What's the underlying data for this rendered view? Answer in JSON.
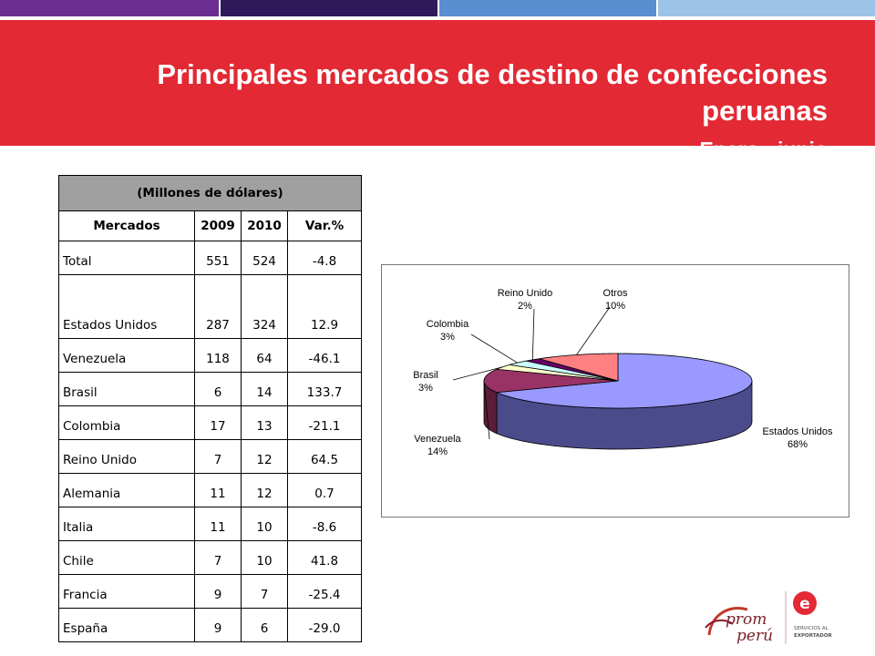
{
  "slide": {
    "title": "Principales mercados de destino de confecciones peruanas",
    "subtitle": "Enero -  junio"
  },
  "colors": {
    "banner": "#e32934",
    "topbar": [
      "#6b2d8f",
      "#2e1a5b",
      "#5a8ed0",
      "#9cc3e8"
    ],
    "table_caption_bg": "#a0a0a0"
  },
  "table": {
    "caption": "(Millones de dólares)",
    "headers": [
      "Mercados",
      "2009",
      "2010",
      "Var.%"
    ],
    "rows": [
      [
        "Total",
        "551",
        "524",
        "-4.8"
      ],
      [
        "Estados Unidos",
        "287",
        "324",
        "12.9"
      ],
      [
        "Venezuela",
        "118",
        "64",
        "-46.1"
      ],
      [
        "Brasil",
        "6",
        "14",
        "133.7"
      ],
      [
        "Colombia",
        "17",
        "13",
        "-21.1"
      ],
      [
        "Reino Unido",
        "7",
        "12",
        "64.5"
      ],
      [
        "Alemania",
        "11",
        "12",
        "0.7"
      ],
      [
        "Italia",
        "11",
        "10",
        "-8.6"
      ],
      [
        "Chile",
        "7",
        "10",
        "41.8"
      ],
      [
        "Francia",
        "9",
        "7",
        "-25.4"
      ],
      [
        "España",
        "9",
        "6",
        "-29.0"
      ]
    ]
  },
  "chart_data": {
    "type": "pie",
    "style": "3d",
    "slices": [
      {
        "label": "Estados Unidos",
        "pct_label": "68%",
        "value": 68,
        "color": "#9999ff",
        "side": "#4b4b8c"
      },
      {
        "label": "Venezuela",
        "pct_label": "14%",
        "value": 14,
        "color": "#993366",
        "side": "#5a1d3a"
      },
      {
        "label": "Brasil",
        "pct_label": "3%",
        "value": 3,
        "color": "#ffffcc",
        "side": "#9a9a70"
      },
      {
        "label": "Colombia",
        "pct_label": "3%",
        "value": 3,
        "color": "#ccffff",
        "side": "#6f9a9a"
      },
      {
        "label": "Reino Unido",
        "pct_label": "2%",
        "value": 2,
        "color": "#660066",
        "side": "#330033"
      },
      {
        "label": "Otros",
        "pct_label": "10%",
        "value": 10,
        "color": "#ff8080",
        "side": "#9a4444"
      }
    ]
  },
  "logos": {
    "prom": "prom",
    "peru": "perú",
    "servicios": "SERVICIOS AL",
    "exportador": "EXPORTADOR"
  }
}
